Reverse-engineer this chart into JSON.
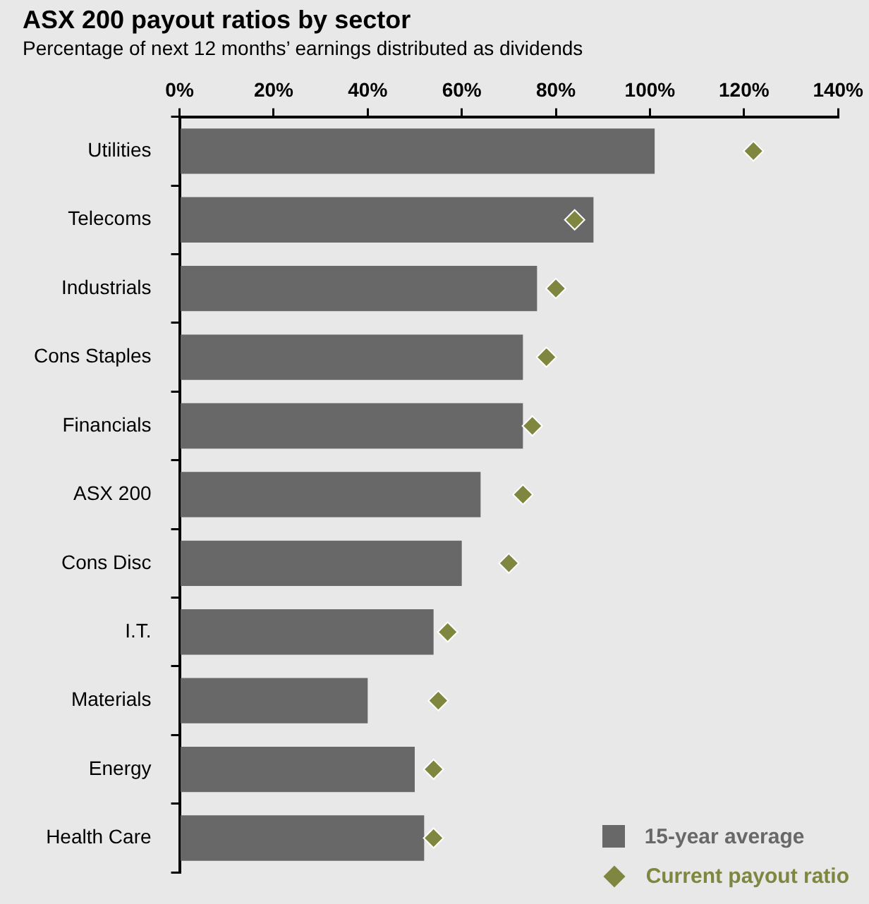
{
  "chart_data": {
    "type": "bar",
    "orientation": "horizontal",
    "title": "ASX 200 payout ratios by sector",
    "subtitle": "Percentage of next 12 months’ earnings distributed as dividends",
    "categories": [
      "Utilities",
      "Telecoms",
      "Industrials",
      "Cons Staples",
      "Financials",
      "ASX 200",
      "Cons Disc",
      "I.T.",
      "Materials",
      "Energy",
      "Health Care"
    ],
    "series": [
      {
        "name": "15-year average",
        "color": "#686868",
        "values": [
          101,
          88,
          76,
          73,
          73,
          64,
          60,
          54,
          40,
          50,
          52
        ]
      },
      {
        "name": "Current payout ratio",
        "type": "scatter",
        "marker": "diamond",
        "color": "#7f8640",
        "values": [
          122,
          84,
          80,
          78,
          75,
          73,
          70,
          57,
          55,
          54,
          54
        ]
      }
    ],
    "xlim": [
      0,
      140
    ],
    "xticks": [
      {
        "value": 0,
        "label": "0%"
      },
      {
        "value": 20,
        "label": "20%"
      },
      {
        "value": 40,
        "label": "40%"
      },
      {
        "value": 60,
        "label": "60%"
      },
      {
        "value": 80,
        "label": "80%"
      },
      {
        "value": 100,
        "label": "100%"
      },
      {
        "value": 120,
        "label": "120%"
      },
      {
        "value": 140,
        "label": "140%"
      }
    ],
    "grid": false,
    "legend": "bottom right"
  }
}
